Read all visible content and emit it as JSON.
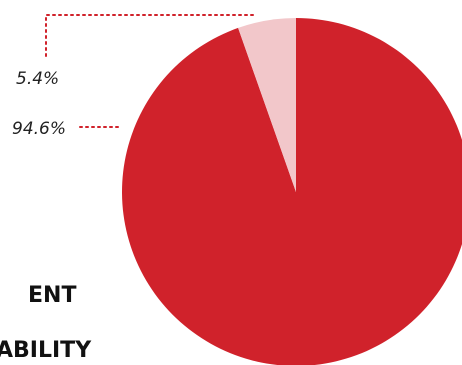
{
  "heading": {
    "lines": [
      "ENT",
      "ABILITY"
    ]
  },
  "chart_data": {
    "type": "pie",
    "slices": [
      {
        "label": "94.6%",
        "value": 94.6,
        "color": "#d0222b"
      },
      {
        "label": "5.4%",
        "value": 5.4,
        "color": "#f2c7ca"
      }
    ],
    "leader_color": "#d0222b",
    "start_angle": "12 o'clock",
    "direction": "clockwise"
  }
}
